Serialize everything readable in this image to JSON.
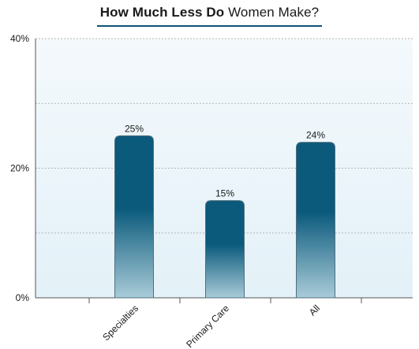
{
  "chart_data": {
    "type": "bar",
    "title_bold": "How Much Less Do",
    "title_light": "Women Make?",
    "categories": [
      "Specialties",
      "Primary Care",
      "All"
    ],
    "values": [
      25,
      15,
      24
    ],
    "data_labels": [
      "25%",
      "15%",
      "24%"
    ],
    "ylim": [
      0,
      40
    ],
    "yticks": [
      0,
      20,
      40
    ],
    "ytick_labels": [
      "0%",
      "20%",
      "40%"
    ],
    "grid_lines": [
      10,
      20,
      30
    ],
    "grid": true,
    "xlabel": "",
    "ylabel": "",
    "colors": {
      "bar_top": "#0b5a7c",
      "bar_bottom": "#a9cbd8",
      "plot_bg_top": "#f4f9fc",
      "plot_bg_bottom": "#e3f1f8",
      "title_rule": "#0b5475",
      "axis": "#555555",
      "grid": "#b5b5b5"
    }
  }
}
